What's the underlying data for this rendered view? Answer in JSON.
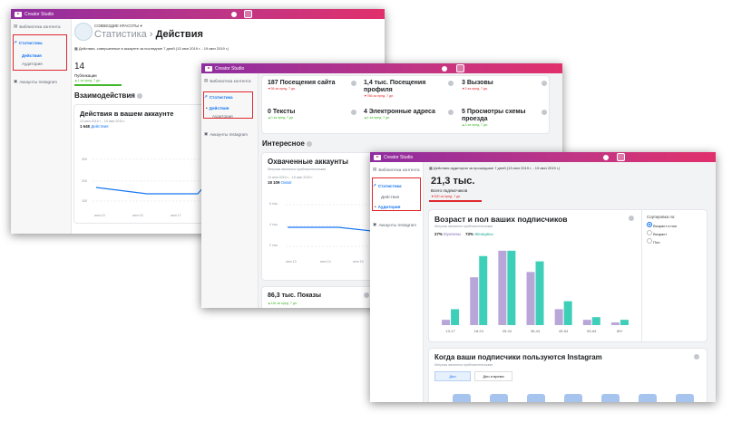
{
  "app_title": "Creator Studio",
  "shot1": {
    "sidebar": {
      "library": "Библиотека контента",
      "stats": "Статистика",
      "actions": "Действия",
      "audience": "Аудитория",
      "ig_accounts": "Аккаунты Instagram"
    },
    "profile_name": "СОВВЕЗДИЕ КРАСОТЫ",
    "breadcrumb_root": "Статистика",
    "breadcrumb_sep": "›",
    "breadcrumb_current": "Действия",
    "period_text": "Действия, совершенные в аккаунте за последние 7 дней (13 июн 2019 г. - 19 июн 2019 г.)",
    "publications_value": "14",
    "publications_label": "Публикации",
    "publications_delta": "▲1 за пред. 7 дн.",
    "section_title": "Взаимодействия",
    "card_title": "Действия в вашем аккаунте",
    "card_dates": "13 июн 2019 г. - 19 июн 2019 г.",
    "card_total": "1 648",
    "card_total_label": "Действия",
    "y_ticks": [
      "300",
      "200",
      "100"
    ],
    "x_ticks": [
      "июн 13",
      "июн 15",
      "июн 17"
    ]
  },
  "shot2": {
    "sidebar": {
      "library": "Библиотека контента",
      "stats": "Статистика",
      "actions": "Действия",
      "audience": "Аудитория",
      "ig_accounts": "Аккаунты Instagram"
    },
    "stats": [
      {
        "value": "187 Посещения сайта",
        "delta": "▼36 за пред. 7 дн."
      },
      {
        "value": "1,4 тыс. Посещения профиля",
        "delta": "▼766 за пред. 7 дн."
      },
      {
        "value": "3 Вызовы",
        "delta": "▼3 за пред. 7 дн."
      },
      {
        "value": "0 Тексты",
        "delta": "▲0 за пред. 7 дн."
      },
      {
        "value": "4 Электронные адреса",
        "delta": "▲4 за пред. 7 дн."
      },
      {
        "value": "5 Просмотры схемы проезда",
        "delta": "▲3 за пред. 7 дн."
      }
    ],
    "section_title": "Интересное",
    "card_title": "Охваченные аккаунты",
    "card_sub": "Метрики являются приблизительными",
    "card_dates": "13 июн 2019 г. - 19 июн 2019 г.",
    "card_total": "18 109",
    "card_total_label": "Охват",
    "y_ticks": [
      "6 тыс.",
      "4 тыс.",
      "2 тыс."
    ],
    "x_ticks": [
      "июн 13",
      "июн 14",
      "июн 15"
    ],
    "impressions": "86,3 тыс. Показы",
    "impressions_delta": "▲116 за пред. 7 дн."
  },
  "shot3": {
    "sidebar": {
      "library": "Библиотека контента",
      "stats": "Статистика",
      "actions": "Действия",
      "audience": "Аудитория",
      "ig_accounts": "Аккаунты Instagram"
    },
    "period_text": "Действия аудитории за прошедшие 7 дней (13 июн 2019 г. - 19 июн 2019 г.)",
    "followers_value": "21,3 тыс.",
    "followers_label": "Всего подписчиков",
    "followers_delta": "▼300 за пред. 7 дн.",
    "age_title": "Возраст и пол ваших подписчиков",
    "age_sub": "Метрики являются приблизительными",
    "men_pct": "27%",
    "men_label": "Мужчины",
    "women_pct": "73%",
    "women_label": "Женщины",
    "sort_label": "Сортировка по:",
    "sort_options": [
      "Возраст и пол",
      "Возраст",
      "Пол"
    ],
    "when_title": "Когда ваши подписчики пользуются Instagram",
    "when_sub": "Метрики являются приблизительными",
    "btn_days": "Дни",
    "btn_days_time": "Дни и время"
  },
  "colors": {
    "men": "#b9a6d9",
    "women": "#3ecfb8",
    "accent": "#1877f2",
    "highlight": "#e0282e"
  },
  "chart_data": {
    "type": "bar",
    "title": "Возраст и пол ваших подписчиков",
    "categories": [
      "13-17",
      "18-24",
      "25-34",
      "35-44",
      "45-54",
      "55-64",
      "65+"
    ],
    "series": [
      {
        "name": "Мужчины",
        "values": [
          1,
          9,
          14,
          10,
          3,
          1,
          0.5
        ]
      },
      {
        "name": "Женщины",
        "values": [
          3,
          13,
          14,
          12,
          4.5,
          1.5,
          1
        ]
      }
    ],
    "ylim": [
      0,
      15
    ]
  }
}
